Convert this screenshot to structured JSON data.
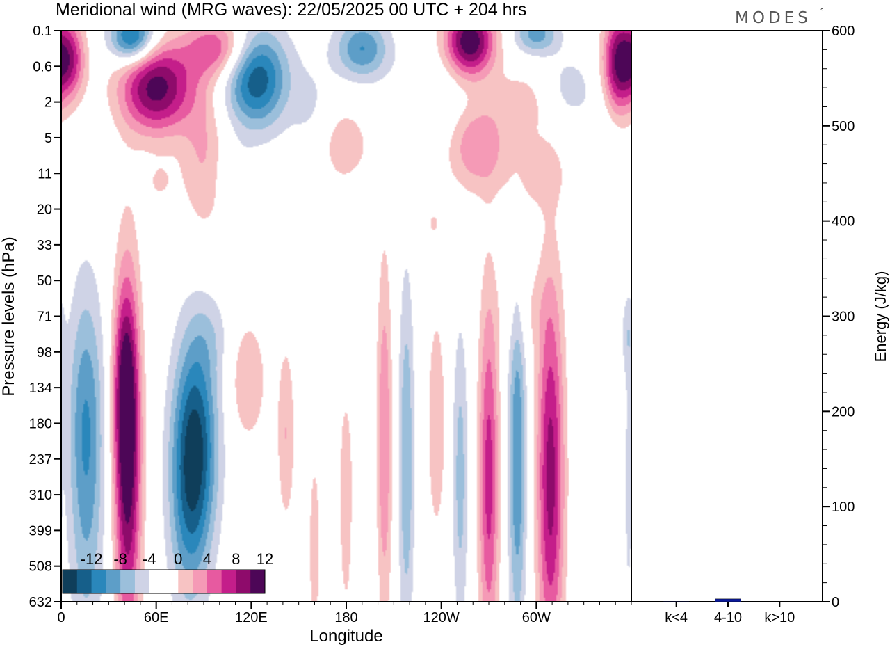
{
  "header": {
    "title": "Meridional wind (MRG waves):  22/05/2025  00 UTC  + 204 hrs",
    "brand": "MODES",
    "brand_mark": "°"
  },
  "colors": {
    "palette": [
      "#0f3e5a",
      "#165f8a",
      "#2a87bb",
      "#5d9ec8",
      "#9bbfdb",
      "#cfd3e6",
      "#ffffff",
      "#ffffff",
      "#f7c3c3",
      "#f59ab6",
      "#e75aa0",
      "#c41e8a",
      "#8e0b6b",
      "#4d0657"
    ],
    "energy_bar": "#0b1a9b"
  },
  "chart_data": [
    {
      "type": "heatmap",
      "title": "Meridional wind (MRG waves):  22/05/2025  00 UTC  + 204 hrs",
      "xlabel": "Longitude",
      "ylabel": "Pressure levels (hPa)",
      "x_ticks": [
        "0",
        "60E",
        "120E",
        "180",
        "120W",
        "60W"
      ],
      "y_ticks": [
        "0.1",
        "0.6",
        "2",
        "5",
        "11",
        "20",
        "33",
        "50",
        "71",
        "98",
        "134",
        "180",
        "237",
        "310",
        "399",
        "508",
        "632"
      ],
      "colorbar": {
        "levels": [
          -14,
          -12,
          -10,
          -8,
          -6,
          -4,
          -2,
          0,
          2,
          4,
          6,
          8,
          10,
          12,
          14
        ],
        "labels": [
          "-12",
          "-8",
          "-4",
          "0",
          "4",
          "8",
          "12"
        ]
      },
      "features": [
        {
          "x": 16,
          "y": 12.5,
          "v": -6,
          "sx": 8,
          "sy": 3.6
        },
        {
          "x": 15,
          "y": 10.5,
          "v": -3,
          "sx": 8,
          "sy": 2.2
        },
        {
          "x": 42,
          "y": 12.0,
          "v": 13,
          "sx": 6,
          "sy": 3.6
        },
        {
          "x": 40,
          "y": 10.0,
          "v": 6,
          "sx": 5,
          "sy": 1.8
        },
        {
          "x": 85,
          "y": 11.5,
          "v": -11,
          "sx": 10,
          "sy": 2.2
        },
        {
          "x": 80,
          "y": 13.5,
          "v": -5,
          "sx": 9,
          "sy": 2.2
        },
        {
          "x": 95,
          "y": 8.5,
          "v": -2,
          "sx": 9,
          "sy": 0.8
        },
        {
          "x": 118,
          "y": 9.8,
          "v": 4,
          "sx": 8,
          "sy": 1.2
        },
        {
          "x": 142,
          "y": 11.3,
          "v": 4,
          "sx": 4,
          "sy": 1.8
        },
        {
          "x": 160,
          "y": 14.5,
          "v": 3,
          "sx": 3,
          "sy": 2.2
        },
        {
          "x": 180,
          "y": 13.0,
          "v": 3,
          "sx": 4,
          "sy": 3.0
        },
        {
          "x": 186,
          "y": 7.8,
          "v": -2,
          "sx": 6,
          "sy": 1.6
        },
        {
          "x": 192,
          "y": 14.5,
          "v": -2,
          "sx": 4,
          "sy": 2.0
        },
        {
          "x": 204,
          "y": 11.5,
          "v": 6,
          "sx": 3.5,
          "sy": 3.6
        },
        {
          "x": 218,
          "y": 12.0,
          "v": -6,
          "sx": 3.5,
          "sy": 3.6
        },
        {
          "x": 237,
          "y": 11.0,
          "v": 4,
          "sx": 4,
          "sy": 2.2
        },
        {
          "x": 252,
          "y": 12.5,
          "v": -5,
          "sx": 3.5,
          "sy": 3.0
        },
        {
          "x": 270,
          "y": 12.5,
          "v": 9,
          "sx": 4.5,
          "sy": 3.6
        },
        {
          "x": 288,
          "y": 12.0,
          "v": -8,
          "sx": 4,
          "sy": 3.6
        },
        {
          "x": 309,
          "y": 12.5,
          "v": 11,
          "sx": 6,
          "sy": 3.8
        },
        {
          "x": 292,
          "y": 7.8,
          "v": 2,
          "sx": 10,
          "sy": 0.9
        },
        {
          "x": 358,
          "y": 13.0,
          "v": -2,
          "sx": 2,
          "sy": 3.0
        },
        {
          "x": 358,
          "y": 8.5,
          "v": -3,
          "sx": 3,
          "sy": 0.8
        },
        {
          "x": 60,
          "y": 1.6,
          "v": 13,
          "sx": 16,
          "sy": 0.9
        },
        {
          "x": 123,
          "y": 1.3,
          "v": -12,
          "sx": 14,
          "sy": 1.0
        },
        {
          "x": 45,
          "y": 0.2,
          "v": -12,
          "sx": 10,
          "sy": 0.5
        },
        {
          "x": 100,
          "y": 0.5,
          "v": 8,
          "sx": 15,
          "sy": 0.6
        },
        {
          "x": 5,
          "y": 0.8,
          "v": 10,
          "sx": 7,
          "sy": 0.8
        },
        {
          "x": 190,
          "y": 0.5,
          "v": -8,
          "sx": 12,
          "sy": 0.6
        },
        {
          "x": 258,
          "y": 0.3,
          "v": 14,
          "sx": 11,
          "sy": 0.7
        },
        {
          "x": 300,
          "y": 0.1,
          "v": -7,
          "sx": 10,
          "sy": 0.4
        },
        {
          "x": 352,
          "y": 0.9,
          "v": 12,
          "sx": 7,
          "sy": 1.0
        },
        {
          "x": 90,
          "y": 3.5,
          "v": 4,
          "sx": 10,
          "sy": 1.6
        },
        {
          "x": 160,
          "y": 2.7,
          "v": -3,
          "sx": 10,
          "sy": 1.2
        },
        {
          "x": 175,
          "y": 3.2,
          "v": 4,
          "sx": 14,
          "sy": 0.8
        },
        {
          "x": 235,
          "y": 2.0,
          "v": -2,
          "sx": 20,
          "sy": 0.9
        },
        {
          "x": 262,
          "y": 3.2,
          "v": 6,
          "sx": 13,
          "sy": 0.9
        },
        {
          "x": 292,
          "y": 2.0,
          "v": 3,
          "sx": 14,
          "sy": 0.7
        },
        {
          "x": 320,
          "y": 1.6,
          "v": -3,
          "sx": 12,
          "sy": 0.7
        },
        {
          "x": 300,
          "y": 4.0,
          "v": 3,
          "sx": 14,
          "sy": 0.7
        },
        {
          "x": 62,
          "y": 4.3,
          "v": 2,
          "sx": 8,
          "sy": 0.5
        },
        {
          "x": 110,
          "y": 4.1,
          "v": -2,
          "sx": 8,
          "sy": 0.6
        },
        {
          "x": 235,
          "y": 5.4,
          "v": 2,
          "sx": 5,
          "sy": 0.4
        },
        {
          "x": 340,
          "y": 3.5,
          "v": -2,
          "sx": 8,
          "sy": 1.0
        }
      ]
    },
    {
      "type": "bar",
      "categories": [
        "k<4",
        "4-10",
        "k>10"
      ],
      "values": [
        0.5,
        3,
        0.3
      ],
      "ylabel": "Energy (J/kg)",
      "ylim": [
        0,
        600
      ],
      "y_ticks": [
        "0",
        "100",
        "200",
        "300",
        "400",
        "500",
        "600"
      ]
    }
  ]
}
